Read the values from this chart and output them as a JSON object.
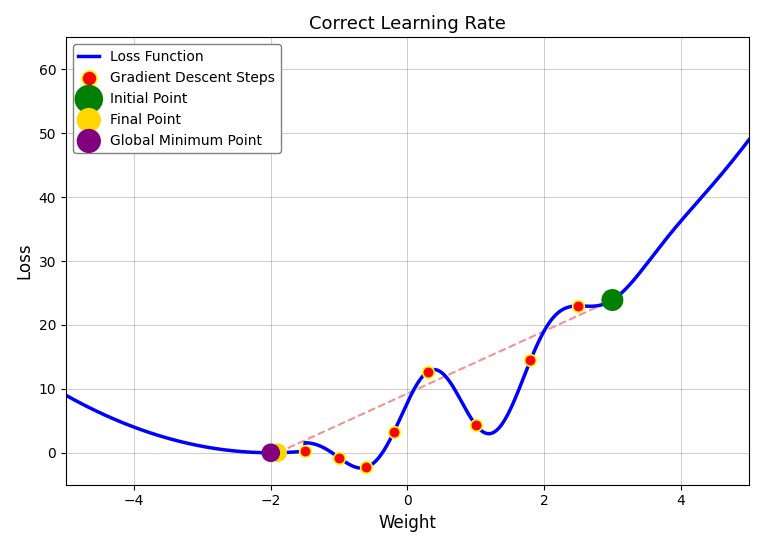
{
  "title": "Correct Learning Rate",
  "xlabel": "Weight",
  "ylabel": "Loss",
  "xlim": [
    -5,
    5
  ],
  "ylim": [
    -5,
    65
  ],
  "loss_color": "blue",
  "loss_linewidth": 2.5,
  "grid": true,
  "descent_steps_x": [
    3.0,
    2.5,
    1.8,
    1.0,
    0.3,
    -0.2,
    -0.6,
    -1.0,
    -1.5,
    -1.9
  ],
  "initial_point_x": 3.0,
  "final_point_x": -1.9,
  "global_min_x": -2.0,
  "initial_color": "green",
  "final_color": "gold",
  "global_min_color": "purple",
  "descent_color": "red",
  "descent_edge_color": "yellow",
  "dashed_line_color": "lightcoral",
  "initial_point_size": 250,
  "special_point_size": 180,
  "descent_point_size": 70,
  "background_color": "white",
  "legend_fontsize": 10,
  "title_fontsize": 13,
  "xticks": [
    -4,
    -2,
    0,
    2,
    4
  ],
  "yticks": [
    0,
    10,
    20,
    30,
    40,
    50,
    60
  ]
}
